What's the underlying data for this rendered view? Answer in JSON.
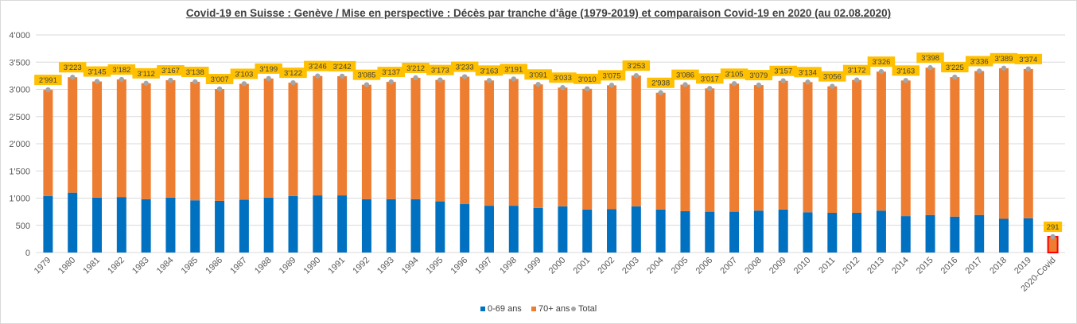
{
  "chart_data": {
    "type": "bar",
    "stacked": true,
    "title": "Covid-19 en Suisse : Genève / Mise en perspective : Décès par tranche d'âge (1979-2019) et comparaison Covid-19 en 2020 (au 02.08.2020)",
    "categories": [
      "1979",
      "1980",
      "1981",
      "1982",
      "1983",
      "1984",
      "1985",
      "1986",
      "1987",
      "1988",
      "1989",
      "1990",
      "1991",
      "1992",
      "1993",
      "1994",
      "1995",
      "1996",
      "1997",
      "1998",
      "1999",
      "2000",
      "2001",
      "2002",
      "2003",
      "2004",
      "2005",
      "2006",
      "2007",
      "2008",
      "2009",
      "2010",
      "2011",
      "2012",
      "2013",
      "2014",
      "2015",
      "2016",
      "2017",
      "2018",
      "2019",
      "2020-Covid"
    ],
    "series": [
      {
        "name": "0-69 ans",
        "color": "#0070c0",
        "values": [
          1040,
          1100,
          1010,
          1020,
          980,
          1010,
          960,
          950,
          970,
          1010,
          1040,
          1050,
          1050,
          980,
          980,
          980,
          940,
          890,
          860,
          860,
          820,
          850,
          790,
          800,
          850,
          790,
          760,
          750,
          750,
          770,
          790,
          740,
          730,
          730,
          770,
          670,
          690,
          660,
          690,
          620,
          630,
          0
        ]
      },
      {
        "name": "70+ ans",
        "color": "#ed7d31",
        "values": [
          1951,
          2123,
          2135,
          2162,
          2132,
          2157,
          2178,
          2057,
          2133,
          2189,
          2082,
          2196,
          2192,
          2105,
          2157,
          2232,
          2233,
          2343,
          2303,
          2331,
          2271,
          2183,
          2220,
          2275,
          2403,
          2148,
          2326,
          2267,
          2355,
          2309,
          2367,
          2394,
          2326,
          2442,
          2556,
          2493,
          2708,
          2565,
          2646,
          2769,
          2744,
          291
        ]
      },
      {
        "name": "Total",
        "color": "#a5a5a5",
        "values": [
          2991,
          3223,
          3145,
          3182,
          3112,
          3167,
          3138,
          3007,
          3103,
          3199,
          3122,
          3246,
          3242,
          3085,
          3137,
          3212,
          3173,
          3233,
          3163,
          3191,
          3091,
          3033,
          3010,
          3075,
          3253,
          2938,
          3086,
          3017,
          3105,
          3079,
          3157,
          3134,
          3056,
          3172,
          3326,
          3163,
          3398,
          3225,
          3336,
          3389,
          3374,
          291
        ]
      }
    ],
    "data_labels": [
      "2'991",
      "3'223",
      "3'145",
      "3'182",
      "3'112",
      "3'167",
      "3'138",
      "3'007",
      "3'103",
      "3'199",
      "3'122",
      "3'246",
      "3'242",
      "3'085",
      "3'137",
      "3'212",
      "3'173",
      "3'233",
      "3'163",
      "3'191",
      "3'091",
      "3'033",
      "3'010",
      "3'075",
      "3'253",
      "2'938",
      "3'086",
      "3'017",
      "3'105",
      "3'079",
      "3'157",
      "3'134",
      "3'056",
      "3'172",
      "3'326",
      "3'163",
      "3'398",
      "3'225",
      "3'336",
      "3'389",
      "3'374",
      "291"
    ],
    "highlight_index": 41,
    "highlight_color": "#ff0000",
    "label_box_color": "#ffc000",
    "ylim": [
      0,
      4000
    ],
    "yticks": [
      0,
      500,
      1000,
      1500,
      2000,
      2500,
      3000,
      3500,
      4000
    ],
    "ytick_labels": [
      "0",
      "500",
      "1'000",
      "1'500",
      "2'000",
      "2'500",
      "3'000",
      "3'500",
      "4'000"
    ],
    "grid": true,
    "legend_position": "bottom"
  }
}
